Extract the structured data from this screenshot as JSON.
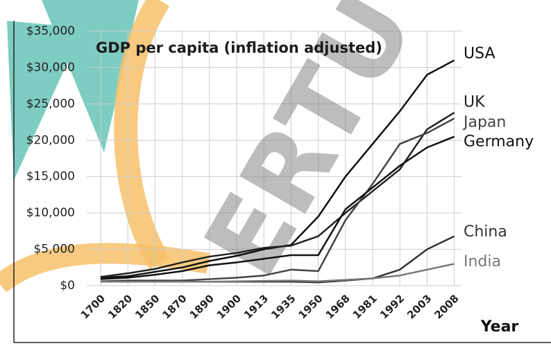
{
  "chart_data": {
    "type": "line",
    "title": "GDP per capita (inflation adjusted)",
    "x_label": "Year",
    "categories": [
      "1700",
      "1820",
      "1850",
      "1870",
      "1890",
      "1900",
      "1913",
      "1935",
      "1950",
      "1968",
      "1981",
      "1992",
      "2003",
      "2008"
    ],
    "ylim": [
      0,
      35000
    ],
    "yticks": [
      {
        "value": 0,
        "label": "$0"
      },
      {
        "value": 5000,
        "label": "$5,000"
      },
      {
        "value": 10000,
        "label": "$10,000"
      },
      {
        "value": 15000,
        "label": "$15,000"
      },
      {
        "value": 20000,
        "label": "$20,000"
      },
      {
        "value": 25000,
        "label": "$25,000"
      },
      {
        "value": 30000,
        "label": "$30,000"
      },
      {
        "value": 35000,
        "label": "$35,000"
      }
    ],
    "grid": true,
    "series": [
      {
        "name": "USA",
        "color": "#111111",
        "values": [
          1100,
          1300,
          1900,
          2500,
          3400,
          4100,
          5000,
          5600,
          9500,
          15000,
          19500,
          24000,
          29000,
          31000
        ]
      },
      {
        "name": "UK",
        "color": "#222222",
        "values": [
          1200,
          1700,
          2300,
          3200,
          4000,
          4500,
          5200,
          5500,
          6800,
          10000,
          13000,
          16000,
          21500,
          23800
        ]
      },
      {
        "name": "Japan",
        "color": "#444444",
        "values": [
          600,
          700,
          700,
          700,
          900,
          1100,
          1400,
          2200,
          2000,
          9000,
          14000,
          19500,
          21000,
          23000
        ]
      },
      {
        "name": "Germany",
        "color": "#111111",
        "values": [
          900,
          1100,
          1500,
          2000,
          2800,
          3200,
          3700,
          4200,
          4200,
          10500,
          13500,
          16500,
          19000,
          20500
        ]
      },
      {
        "name": "China",
        "color": "#333333",
        "values": [
          600,
          600,
          600,
          550,
          550,
          550,
          550,
          550,
          450,
          700,
          1000,
          2200,
          5000,
          6800
        ]
      },
      {
        "name": "India",
        "color": "#777777",
        "values": [
          550,
          550,
          550,
          550,
          550,
          600,
          650,
          700,
          600,
          800,
          1000,
          1400,
          2200,
          3000
        ]
      }
    ]
  }
}
